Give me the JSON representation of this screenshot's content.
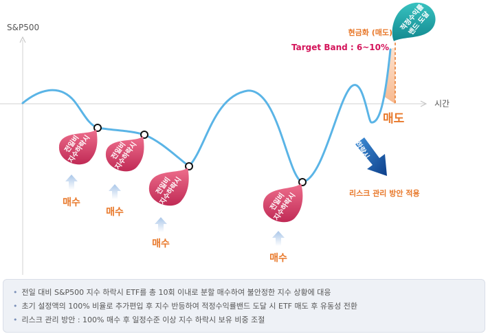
{
  "axis": {
    "y_label": "S&P500",
    "x_label": "시간"
  },
  "drop_markers": [
    {
      "line1": "전일비",
      "line2": "지수하락시"
    },
    {
      "line1": "전일비",
      "line2": "지수하락시"
    },
    {
      "line1": "전일비",
      "line2": "지수하락시"
    },
    {
      "line1": "전일비",
      "line2": "지수하락시"
    }
  ],
  "buy_labels": [
    "매수",
    "매수",
    "매수",
    "매수"
  ],
  "target": {
    "marker_line1": "적정수익률",
    "marker_line2": "밴드 도달",
    "cash_label": "현금화 (매도)",
    "band_label": "Target Band : 6~10%",
    "sell_label": "매도"
  },
  "risk": {
    "arrow_label": "하락시",
    "label": "리스크 관리 방안 적용"
  },
  "notes": [
    "전일 대비 S&P500 지수 하락시 ETF를 총 10회 이내로 분할 매수하여 불안정한 지수 상황에 대응",
    "초기 설정액의 100% 비율로 추가편입 후 지수 반등하여 적정수익률밴드 도달 시 ETF 매도 후 유동성 전환",
    "리스크 관리 방안 : 100% 매수 후 일정수준 이상 지수 하락시 보유 비중 조절"
  ],
  "colors": {
    "curve": "#5ab4e6",
    "drop_marker": "#d63a64",
    "target_marker": "#1aa3a8",
    "accent_orange": "#e8782a",
    "band_pink": "#d4145a",
    "risk_arrow": "#1f6ab3"
  }
}
